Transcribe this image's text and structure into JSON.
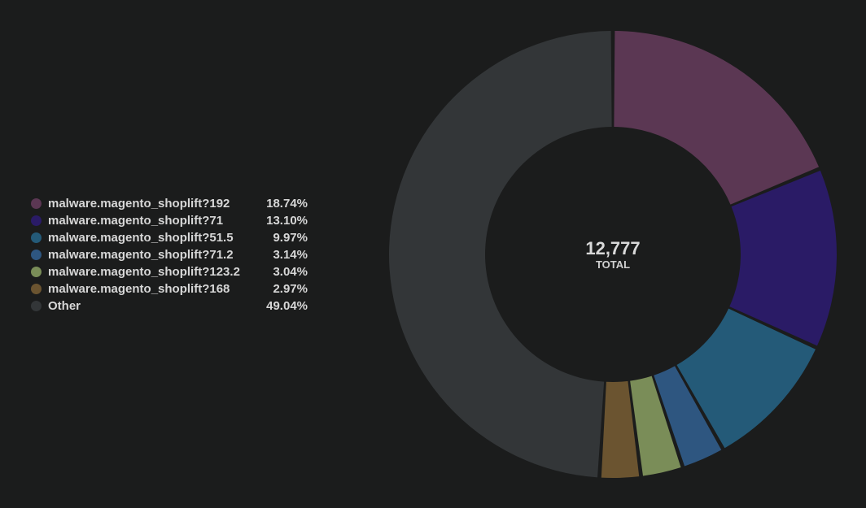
{
  "chart_data": {
    "type": "pie",
    "center_value": "12,777",
    "center_label": "TOTAL",
    "slices": [
      {
        "label": "malware.magento_shoplift?192",
        "value_text": "18.74%",
        "value": 18.74,
        "color": "#5b3753"
      },
      {
        "label": "malware.magento_shoplift?71",
        "value_text": "13.10%",
        "value": 13.1,
        "color": "#2a1b66"
      },
      {
        "label": "malware.magento_shoplift?51.5",
        "value_text": "9.97%",
        "value": 9.97,
        "color": "#245a78"
      },
      {
        "label": "malware.magento_shoplift?71.2",
        "value_text": "3.14%",
        "value": 3.14,
        "color": "#2e5680"
      },
      {
        "label": "malware.magento_shoplift?123.2",
        "value_text": "3.04%",
        "value": 3.04,
        "color": "#7a8d58"
      },
      {
        "label": "malware.magento_shoplift?168",
        "value_text": "2.97%",
        "value": 2.97,
        "color": "#6b5430"
      },
      {
        "label": "Other",
        "value_text": "49.04%",
        "value": 49.04,
        "color": "#333638"
      }
    ]
  }
}
